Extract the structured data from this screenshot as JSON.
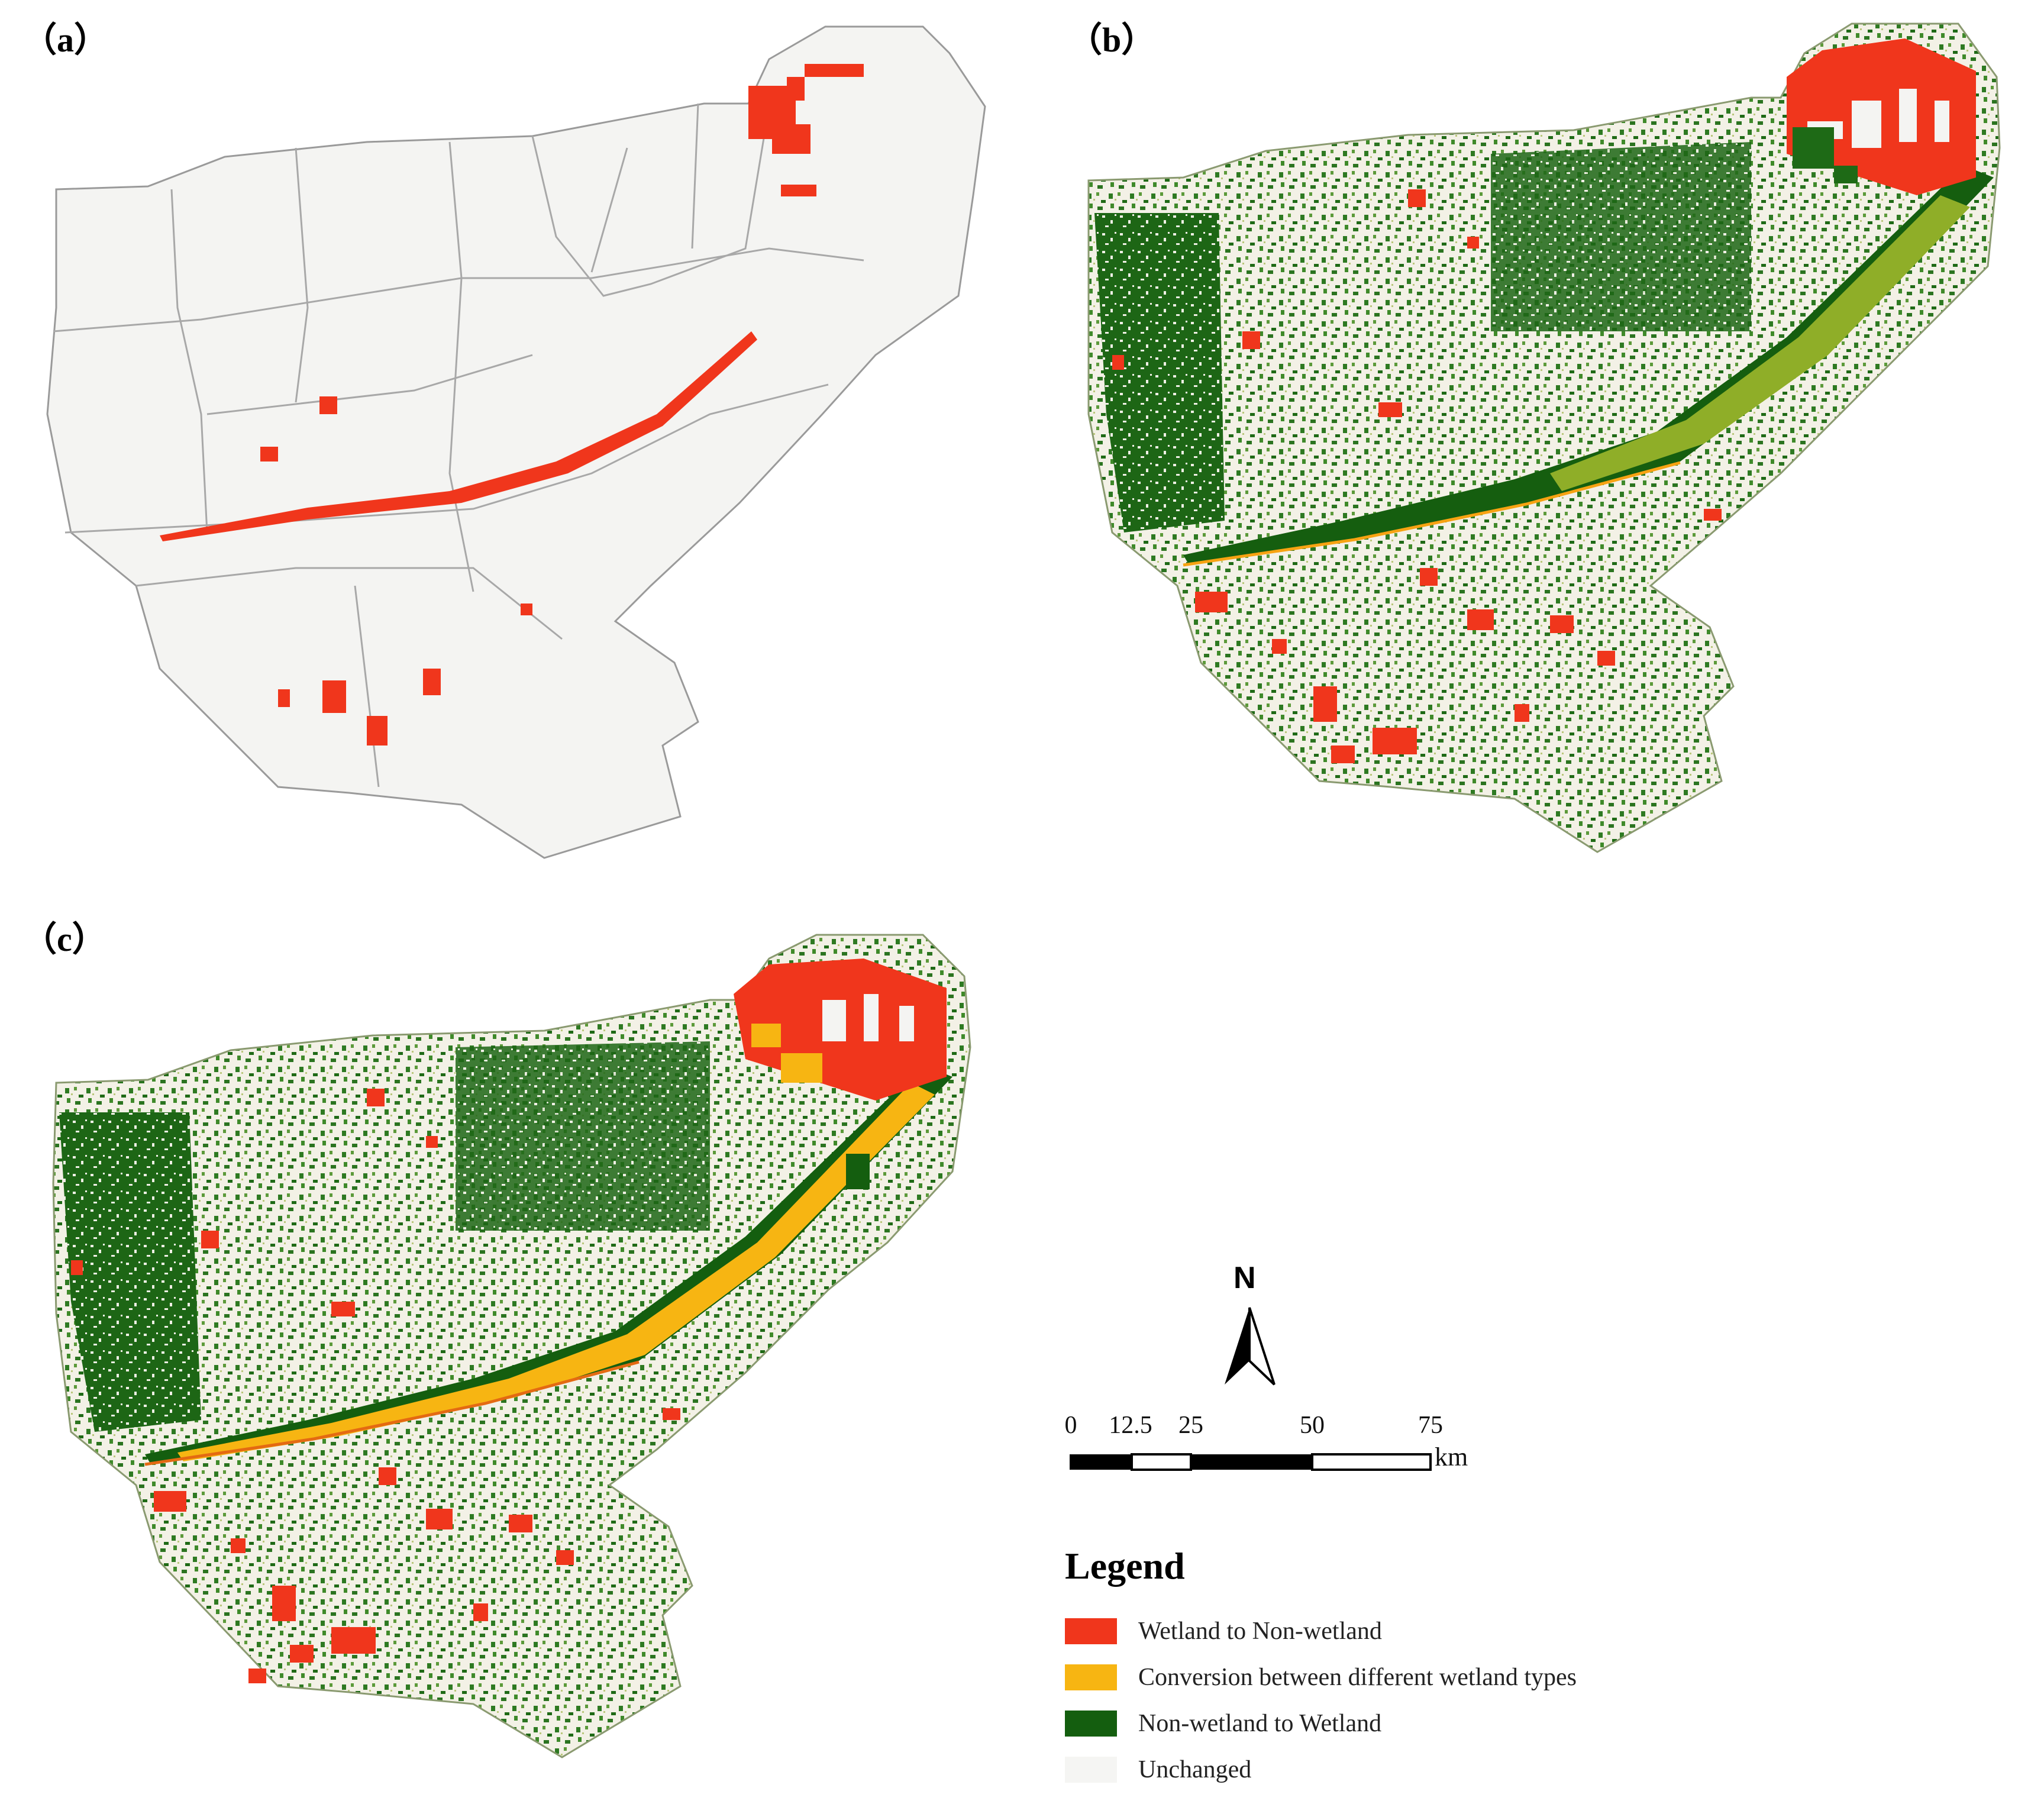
{
  "panels": [
    {
      "label": "（a）"
    },
    {
      "label": "（b）"
    },
    {
      "label": "（c）"
    }
  ],
  "north_arrow": {
    "label": "N",
    "icon": "north-arrow-icon"
  },
  "scale_bar": {
    "ticks": [
      "0",
      "12.5",
      "25",
      "50",
      "75"
    ],
    "unit": "km"
  },
  "legend": {
    "title": "Legend",
    "items": [
      {
        "label": "Wetland to Non-wetland",
        "color": "#f0361c"
      },
      {
        "label": "Conversion between different wetland types",
        "color": "#f7b512"
      },
      {
        "label": "Non-wetland to Wetland",
        "color": "#145e0f"
      },
      {
        "label": "Unchanged",
        "color": "#f5f5f3"
      }
    ]
  }
}
